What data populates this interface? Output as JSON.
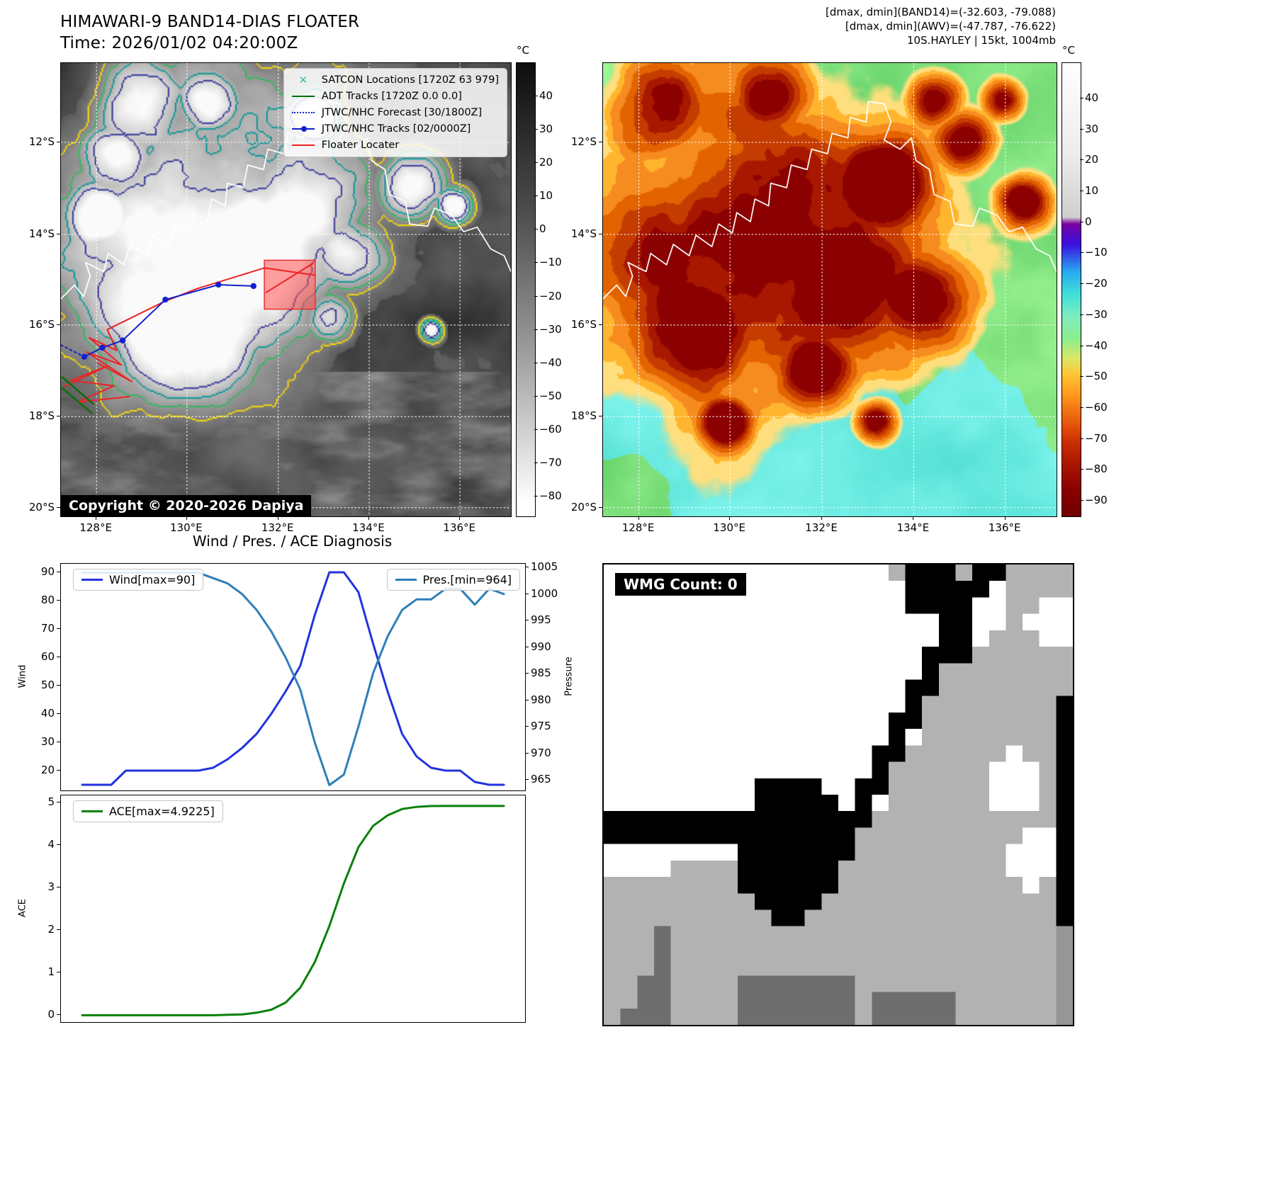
{
  "band14": {
    "title": "HIMAWARI-9 BAND14-DIAS FLOATER",
    "time": "Time: 2026/01/02 04:20:00Z",
    "copyright": "Copyright © 2020-2026 Dapiya",
    "legend": {
      "satcon": "SATCON Locations [1720Z 63 979]",
      "adt": "ADT Tracks [1720Z 0.0 0.0]",
      "forecast": "JTWC/NHC Forecast [30/1800Z]",
      "tracks": "JTWC/NHC Tracks [02/0000Z]",
      "floater": "Floater Locater"
    },
    "lat_ticks": [
      "12°S",
      "14°S",
      "16°S",
      "18°S",
      "20°S"
    ],
    "lon_ticks": [
      "128°E",
      "130°E",
      "132°E",
      "134°E",
      "136°E"
    ],
    "colorbar_unit": "°C",
    "colorbar_ticks": [
      "40",
      "30",
      "20",
      "10",
      "0",
      "−10",
      "−20",
      "−30",
      "−40",
      "−50",
      "−60",
      "−70",
      "−80"
    ]
  },
  "awv": {
    "header_lines": [
      "[dmax, dmin](BAND14)=(-32.603, -79.088)",
      "[dmax, dmin](AWV)=(-47.787, -76.622)",
      "10S.HAYLEY | 15kt, 1004mb"
    ],
    "lat_ticks": [
      "12°S",
      "14°S",
      "16°S",
      "18°S",
      "20°S"
    ],
    "lon_ticks": [
      "128°E",
      "130°E",
      "132°E",
      "134°E",
      "136°E"
    ],
    "colorbar_unit": "°C",
    "colorbar_ticks": [
      "40",
      "30",
      "20",
      "10",
      "0",
      "−10",
      "−20",
      "−30",
      "−40",
      "−50",
      "−60",
      "−70",
      "−80",
      "−90"
    ]
  },
  "diagnosis": {
    "title": "Wind / Pres. / ACE Diagnosis"
  },
  "wmg": {
    "label": "WMG Count: 0"
  },
  "colors": {
    "wind": "#2233dd",
    "pres": "#2e7fb9",
    "ace": "#0a800a",
    "floater_red": "#ee2222",
    "track_blue": "#1122cc",
    "adt_green": "#0c6e0c",
    "satcon_teal": "#35bdb2"
  },
  "chart_data": [
    {
      "type": "line",
      "title": "Wind / Pres. / ACE Diagnosis",
      "series": [
        {
          "name": "Wind[max=90]",
          "color_key": "wind",
          "axis": "left",
          "values": [
            15,
            15,
            15,
            20,
            20,
            20,
            20,
            20,
            20,
            21,
            24,
            28,
            33,
            40,
            48,
            57,
            75,
            90,
            90,
            83,
            65,
            48,
            33,
            25,
            21,
            20,
            20,
            16,
            15,
            15
          ]
        },
        {
          "name": "Pres.[min=964]",
          "color_key": "pres",
          "axis": "right",
          "values": [
            1004,
            1004,
            1004,
            1004,
            1004,
            1004,
            1004,
            1004,
            1004,
            1003,
            1002,
            1000,
            997,
            993,
            988,
            982,
            972,
            964,
            966,
            975,
            985,
            992,
            997,
            999,
            999,
            1001,
            1001,
            998,
            1001,
            1000
          ]
        }
      ],
      "left_axis": {
        "label": "Wind",
        "ticks": [
          20,
          30,
          40,
          50,
          60,
          70,
          80,
          90
        ],
        "range": [
          13,
          93
        ]
      },
      "right_axis": {
        "label": "Pressure",
        "ticks": [
          965,
          970,
          975,
          980,
          985,
          990,
          995,
          1000,
          1005
        ],
        "range": [
          963,
          1005.7
        ]
      }
    },
    {
      "type": "line",
      "series": [
        {
          "name": "ACE[max=4.9225]",
          "color_key": "ace",
          "axis": "left",
          "values": [
            0,
            0,
            0,
            0,
            0,
            0,
            0,
            0,
            0,
            0,
            0.01,
            0.02,
            0.06,
            0.13,
            0.3,
            0.65,
            1.25,
            2.1,
            3.1,
            3.95,
            4.45,
            4.7,
            4.85,
            4.9,
            4.92,
            4.9225,
            4.9225,
            4.9225,
            4.9225,
            4.9225
          ]
        }
      ],
      "left_axis": {
        "label": "ACE",
        "ticks": [
          0,
          1,
          2,
          3,
          4,
          5
        ],
        "range": [
          -0.16,
          5.17
        ]
      }
    }
  ]
}
